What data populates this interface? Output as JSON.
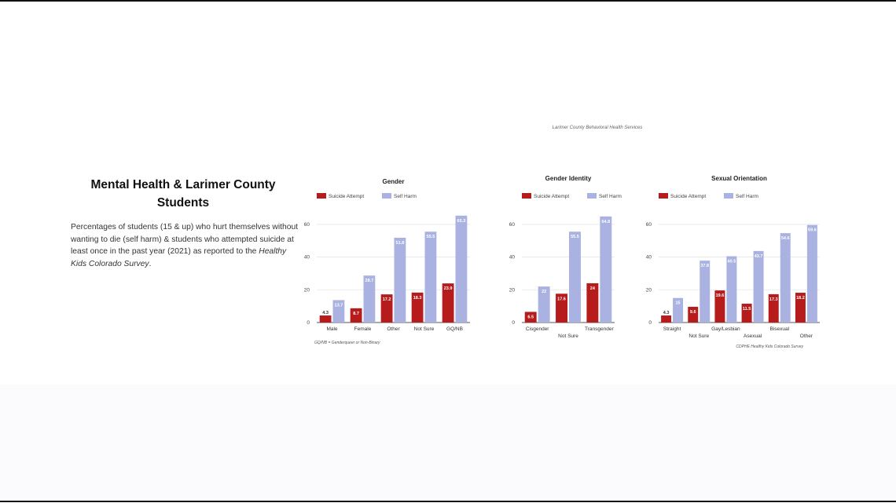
{
  "header": {
    "credit": "Larimer County Behavioral Health Services"
  },
  "sidebar": {
    "title_line1": "Mental Health & Larimer County",
    "title_line2": "Students",
    "desc_main": "Percentages of students (15 & up) who hurt themselves without wanting to die (self harm) & students who attempted suicide at least once in the past year (2021) as reported to the ",
    "desc_survey": "Healthy Kids Colorado Survey",
    "desc_end": "."
  },
  "colors": {
    "attempt": "#b71c1c",
    "harm": "#a9b2e0",
    "grid": "#e6e6e6",
    "axis": "#555555"
  },
  "chart_data": [
    {
      "type": "bar",
      "title": "Gender",
      "categories": [
        "Male",
        "Female",
        "Other",
        "Not Sure",
        "GQ/NB"
      ],
      "series": [
        {
          "name": "Suicide Attempt",
          "values": [
            4.3,
            8.7,
            17.2,
            18.3,
            23.9
          ]
        },
        {
          "name": "Self Harm",
          "values": [
            13.7,
            28.7,
            51.8,
            55.5,
            65.3
          ]
        }
      ],
      "yticks": [
        0,
        20,
        40,
        60
      ],
      "ylim": [
        0,
        70
      ],
      "legend": "top-left",
      "grid": true,
      "footnote": "GQ/NB = Genderqueer or Non-Binary"
    },
    {
      "type": "bar",
      "title": "Gender Identity",
      "categories": [
        "Cisgender",
        "Not Sure",
        "Transgender"
      ],
      "series": [
        {
          "name": "Suicide Attempt",
          "values": [
            6.5,
            17.6,
            24
          ]
        },
        {
          "name": "Self Harm",
          "values": [
            22.0,
            55.5,
            64.8
          ]
        }
      ],
      "yticks": [
        0,
        20,
        40,
        60
      ],
      "ylim": [
        0,
        70
      ],
      "legend": "top-left",
      "grid": true
    },
    {
      "type": "bar",
      "title": "Sexual Orientation",
      "categories": [
        "Straight",
        "Not Sure",
        "Gay/Lesbian",
        "Asexual",
        "Bisexual",
        "Other"
      ],
      "series": [
        {
          "name": "Suicide Attempt",
          "values": [
            4.3,
            9.6,
            19.6,
            11.5,
            17.3,
            18.2
          ]
        },
        {
          "name": "Self Harm",
          "values": [
            15,
            37.8,
            40.5,
            43.7,
            54.6,
            59.6
          ]
        }
      ],
      "yticks": [
        0,
        20,
        40,
        60
      ],
      "ylim": [
        0,
        70
      ],
      "legend": "top-left",
      "grid": true,
      "footnote": "CDPHE Healthy Kids Colorado Survey"
    }
  ]
}
